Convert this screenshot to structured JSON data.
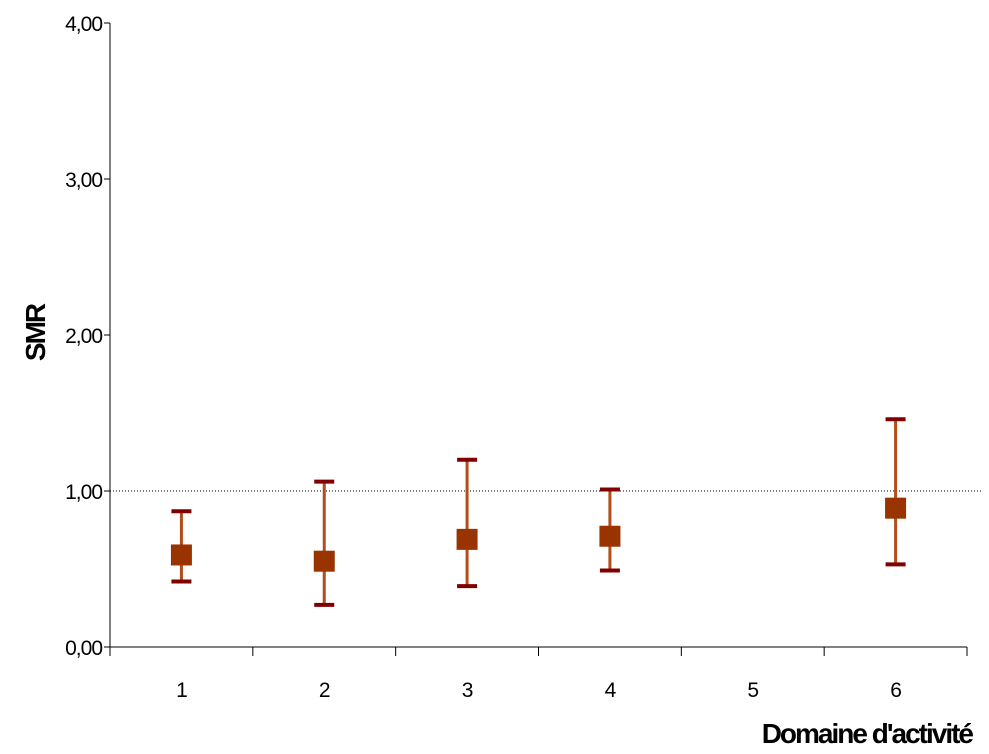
{
  "chart_data": {
    "type": "scatter",
    "title": "",
    "xlabel": "Domaine d'activité",
    "ylabel": "SMR",
    "categories": [
      "1",
      "2",
      "3",
      "4",
      "5",
      "6"
    ],
    "y_ticks": [
      "0,00",
      "1,00",
      "2,00",
      "3,00",
      "4,00"
    ],
    "ylim": [
      0,
      4
    ],
    "reference_line": {
      "y": 1.0,
      "style": "dotted"
    },
    "series": [
      {
        "values": [
          0.59,
          0.55,
          0.69,
          0.71,
          null,
          0.89
        ],
        "ci_lower": [
          0.42,
          0.27,
          0.39,
          0.49,
          null,
          0.53
        ],
        "ci_upper": [
          0.87,
          1.06,
          1.2,
          1.01,
          null,
          1.46
        ]
      }
    ],
    "grid": false,
    "legend": "none",
    "colors": {
      "marker": "#993300",
      "error_bar": "#B34D1A",
      "error_cap": "#800000",
      "axis": "#000000"
    }
  }
}
